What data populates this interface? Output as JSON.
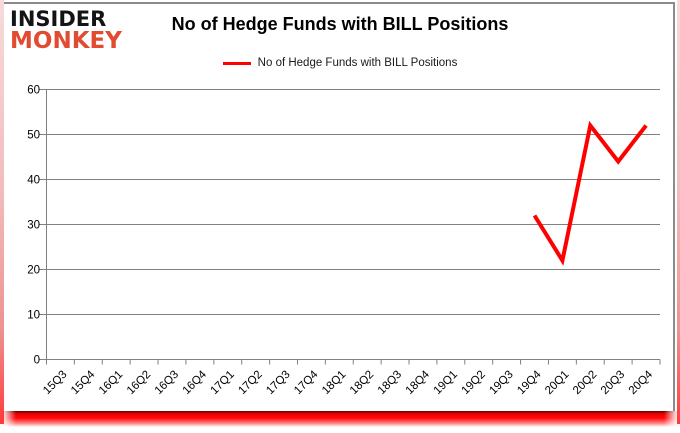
{
  "logo": {
    "line1": "INSIDER",
    "line2": "MONKEY",
    "line1_color": "#141414",
    "line2_color": "#e14b32"
  },
  "title": "No of Hedge Funds with BILL Positions",
  "legend": {
    "label": "No of Hedge Funds with BILL Positions",
    "line_color": "#ff0000"
  },
  "colors": {
    "grid": "#808080",
    "axis": "#808080",
    "tick_text": "#000000",
    "series_line": "#ff0000"
  },
  "chart_data": {
    "type": "line",
    "title": "No of Hedge Funds with BILL Positions",
    "xlabel": "",
    "ylabel": "",
    "categories": [
      "15Q3",
      "15Q4",
      "16Q1",
      "16Q2",
      "16Q3",
      "16Q4",
      "17Q1",
      "17Q2",
      "17Q3",
      "17Q4",
      "18Q1",
      "18Q2",
      "18Q3",
      "18Q4",
      "19Q1",
      "19Q2",
      "19Q3",
      "19Q4",
      "20Q1",
      "20Q2",
      "20Q3",
      "20Q4"
    ],
    "series": [
      {
        "name": "No of Hedge Funds with BILL Positions",
        "color": "#ff0000",
        "points": [
          {
            "category": "19Q4",
            "value": 32
          },
          {
            "category": "20Q1",
            "value": 22
          },
          {
            "category": "20Q2",
            "value": 52
          },
          {
            "category": "20Q3",
            "value": 44
          },
          {
            "category": "20Q4",
            "value": 52
          }
        ]
      }
    ],
    "ylim": [
      0,
      60
    ],
    "ytick_step": 10,
    "grid": true,
    "legend_position": "top-center"
  }
}
